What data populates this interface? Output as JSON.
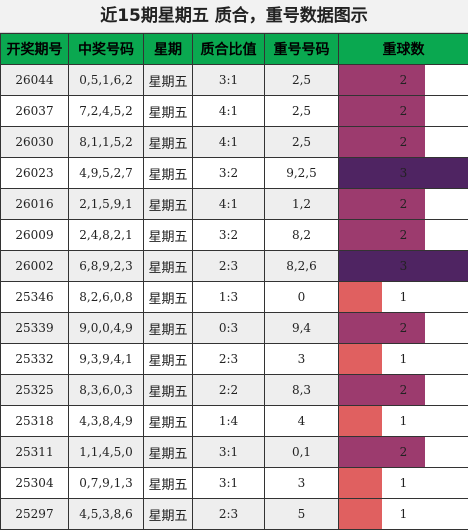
{
  "title": "近15期星期五 质合，重号数据图示",
  "headers": [
    "开奖期号",
    "中奖号码",
    "星期",
    "质合比值",
    "重号号码",
    "重球数"
  ],
  "max_repeat": 3,
  "colors": {
    "1": "#e06060",
    "2": "#9c3b6e",
    "3": "#4f2462"
  },
  "rows": [
    {
      "issue": "26044",
      "numbers": "0,5,1,6,2",
      "week": "星期五",
      "ratio": "3:1",
      "repeat": "2,5",
      "count": 2
    },
    {
      "issue": "26037",
      "numbers": "7,2,4,5,2",
      "week": "星期五",
      "ratio": "4:1",
      "repeat": "2,5",
      "count": 2
    },
    {
      "issue": "26030",
      "numbers": "8,1,1,5,2",
      "week": "星期五",
      "ratio": "4:1",
      "repeat": "2,5",
      "count": 2
    },
    {
      "issue": "26023",
      "numbers": "4,9,5,2,7",
      "week": "星期五",
      "ratio": "3:2",
      "repeat": "9,2,5",
      "count": 3
    },
    {
      "issue": "26016",
      "numbers": "2,1,5,9,1",
      "week": "星期五",
      "ratio": "4:1",
      "repeat": "1,2",
      "count": 2
    },
    {
      "issue": "26009",
      "numbers": "2,4,8,2,1",
      "week": "星期五",
      "ratio": "3:2",
      "repeat": "8,2",
      "count": 2
    },
    {
      "issue": "26002",
      "numbers": "6,8,9,2,3",
      "week": "星期五",
      "ratio": "2:3",
      "repeat": "8,2,6",
      "count": 3
    },
    {
      "issue": "25346",
      "numbers": "8,2,6,0,8",
      "week": "星期五",
      "ratio": "1:3",
      "repeat": "0",
      "count": 1
    },
    {
      "issue": "25339",
      "numbers": "9,0,0,4,9",
      "week": "星期五",
      "ratio": "0:3",
      "repeat": "9,4",
      "count": 2
    },
    {
      "issue": "25332",
      "numbers": "9,3,9,4,1",
      "week": "星期五",
      "ratio": "2:3",
      "repeat": "3",
      "count": 1
    },
    {
      "issue": "25325",
      "numbers": "8,3,6,0,3",
      "week": "星期五",
      "ratio": "2:2",
      "repeat": "8,3",
      "count": 2
    },
    {
      "issue": "25318",
      "numbers": "4,3,8,4,9",
      "week": "星期五",
      "ratio": "1:4",
      "repeat": "4",
      "count": 1
    },
    {
      "issue": "25311",
      "numbers": "1,1,4,5,0",
      "week": "星期五",
      "ratio": "3:1",
      "repeat": "0,1",
      "count": 2
    },
    {
      "issue": "25304",
      "numbers": "0,7,9,1,3",
      "week": "星期五",
      "ratio": "3:1",
      "repeat": "3",
      "count": 1
    },
    {
      "issue": "25297",
      "numbers": "4,5,3,8,6",
      "week": "星期五",
      "ratio": "2:3",
      "repeat": "5",
      "count": 1
    }
  ]
}
